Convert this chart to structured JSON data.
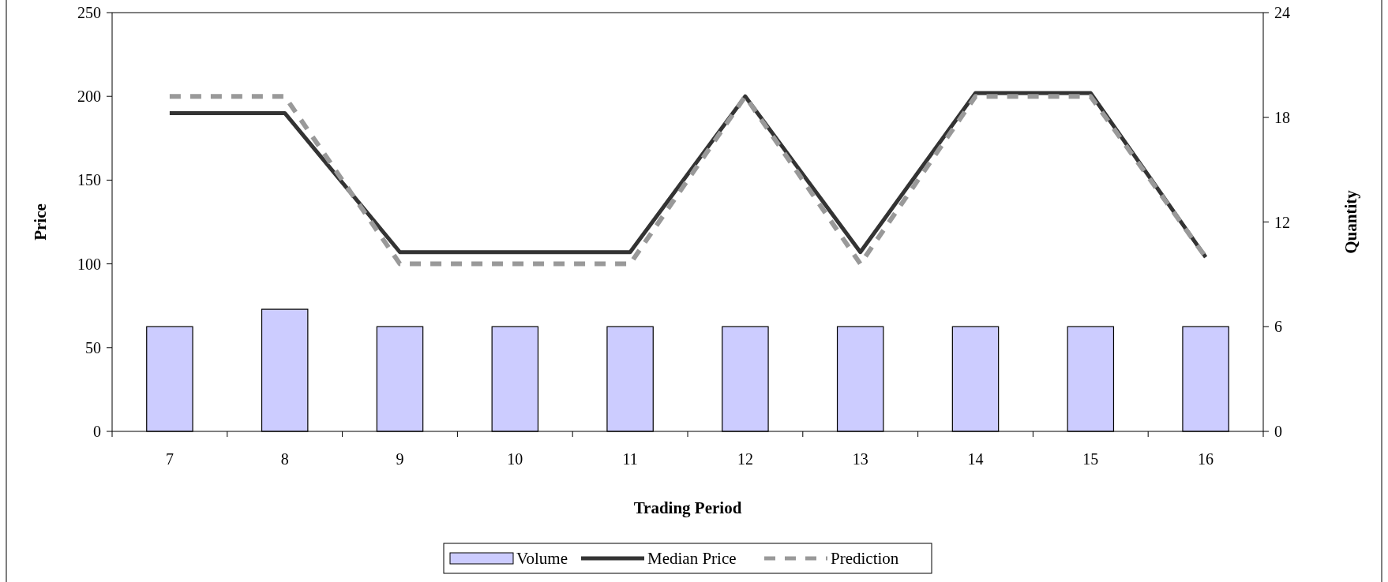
{
  "chart_data": {
    "type": "bar",
    "xlabel": "Trading Period",
    "ylabel": "Price",
    "y2label": "Quantity",
    "categories": [
      "7",
      "8",
      "9",
      "10",
      "11",
      "12",
      "13",
      "14",
      "15",
      "16"
    ],
    "series": [
      {
        "name": "Volume",
        "axis": "y2",
        "color": "#ccccff",
        "values": [
          6,
          7,
          6,
          6,
          6,
          6,
          6,
          6,
          6,
          6
        ]
      },
      {
        "name": "Median Price",
        "type": "line",
        "color": "#333333",
        "line_style": "solid",
        "values": [
          190,
          190,
          107,
          107,
          107,
          200,
          107,
          202,
          202,
          104
        ]
      },
      {
        "name": "Prediction",
        "type": "line",
        "color": "#999999",
        "line_style": "dashed",
        "values": [
          200,
          200,
          100,
          100,
          100,
          200,
          100,
          200,
          200,
          104
        ]
      }
    ],
    "ylim": [
      0,
      250
    ],
    "yticks": [
      0,
      50,
      100,
      150,
      200,
      250
    ],
    "y2lim": [
      0,
      24
    ],
    "y2ticks": [
      0,
      6,
      12,
      18,
      24
    ],
    "legend": "bottom",
    "marker": "none",
    "grid": false
  }
}
